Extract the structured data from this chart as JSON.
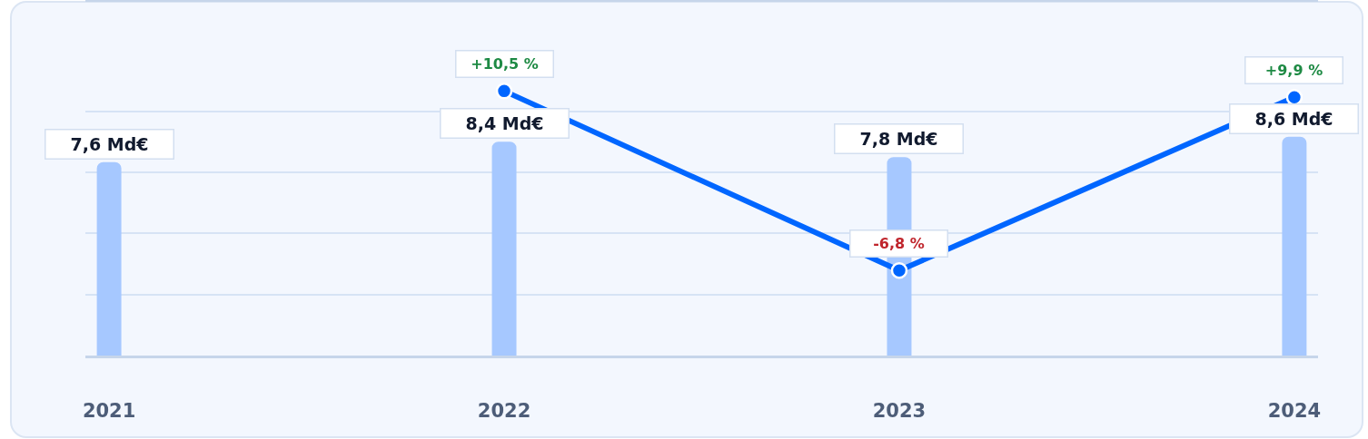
{
  "chart_data": {
    "type": "bar",
    "categories": [
      "2021",
      "2022",
      "2023",
      "2024"
    ],
    "series": [
      {
        "color": "#a6c8ff",
        "values": [
          7.6,
          8.4,
          7.8,
          8.6
        ],
        "value_labels": [
          "7,6 Md€",
          "8,4 Md€",
          "7,8 Md€",
          "8,6 Md€"
        ]
      },
      {
        "type": "line",
        "axis": "y2",
        "color": "#0066ff",
        "values": [
          null,
          10.5,
          -6.8,
          9.9
        ],
        "value_labels": [
          null,
          "+10,5 %",
          "-6,8 %",
          "+9,9 %"
        ]
      }
    ],
    "ylim": [
      0,
      13.9
    ],
    "yticks": [
      {
        "value": 0,
        "label": null
      },
      {
        "value": 2.4,
        "label": null
      },
      {
        "value": 4.8,
        "label": null
      },
      {
        "value": 7.2,
        "label": null
      },
      {
        "value": 9.6,
        "label": null
      }
    ],
    "y2lim": [
      -15,
      19.1
    ],
    "grid": "y",
    "tick_labels": "x",
    "marker": "circle",
    "line_style": "solid"
  }
}
